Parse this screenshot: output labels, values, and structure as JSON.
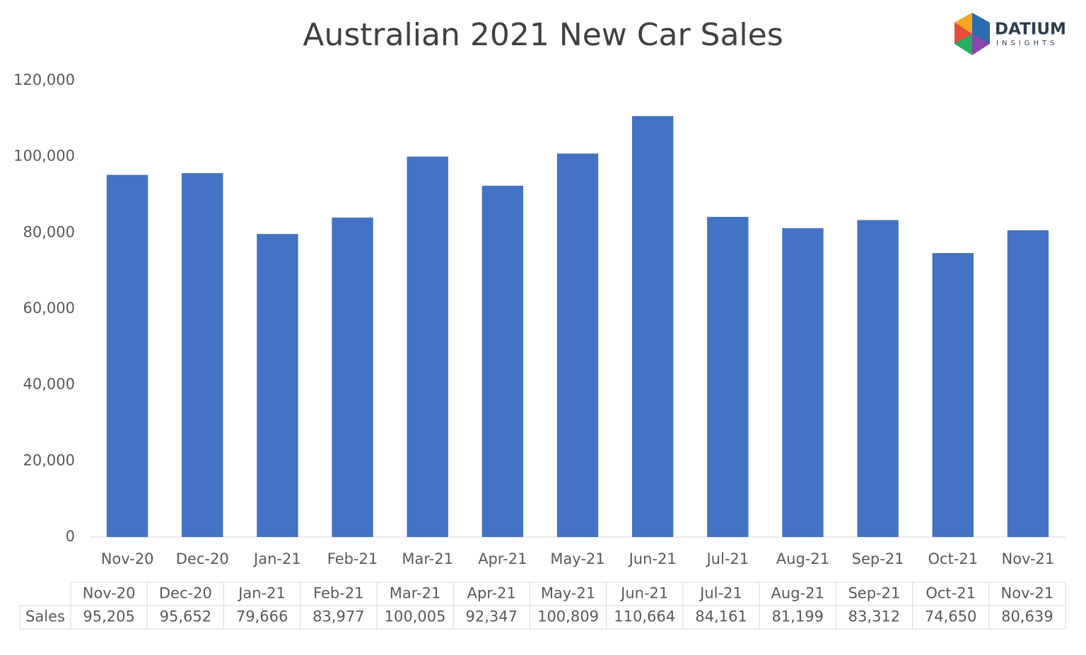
{
  "chart_data": {
    "type": "bar",
    "title": "Australian 2021 New Car Sales",
    "categories": [
      "Nov-20",
      "Dec-20",
      "Jan-21",
      "Feb-21",
      "Mar-21",
      "Apr-21",
      "May-21",
      "Jun-21",
      "Jul-21",
      "Aug-21",
      "Sep-21",
      "Oct-21",
      "Nov-21"
    ],
    "series": [
      {
        "name": "Sales",
        "color": "#4472c4",
        "values": [
          95205,
          95652,
          79666,
          83977,
          100005,
          92347,
          100809,
          110664,
          84161,
          81199,
          83312,
          74650,
          80639
        ],
        "value_labels": [
          "95,205",
          "95,652",
          "79,666",
          "83,977",
          "100,005",
          "92,347",
          "100,809",
          "110,664",
          "84,161",
          "81,199",
          "83,312",
          "74,650",
          "80,639"
        ]
      }
    ],
    "ylim": [
      0,
      120000
    ],
    "yticks": [
      0,
      {
        "value": 20000,
        "label": "20,000"
      },
      {
        "value": 40000,
        "label": "40,000"
      },
      {
        "value": 60000,
        "label": "60,000"
      },
      {
        "value": 80000,
        "label": "80,000"
      },
      {
        "value": 100000,
        "label": "100,000"
      },
      {
        "value": 120000,
        "label": "120,000"
      }
    ],
    "grid": false
  },
  "logo": {
    "name": "DATIUM",
    "tagline": "INSIGHTS"
  }
}
